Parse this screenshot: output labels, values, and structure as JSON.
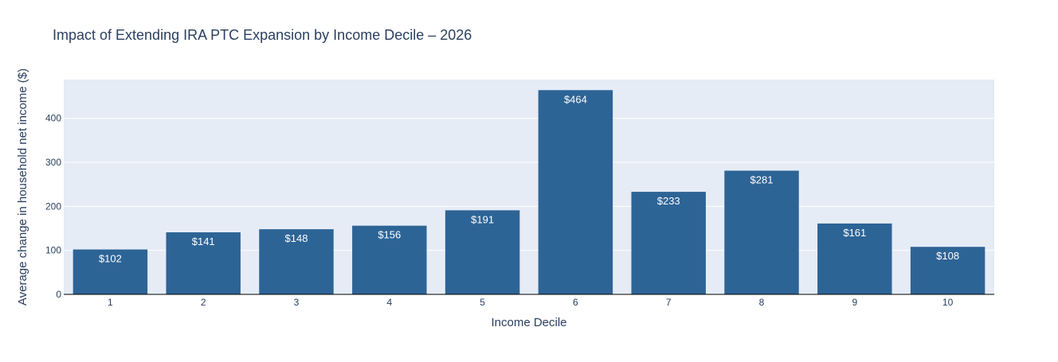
{
  "chart_data": {
    "type": "bar",
    "title": "Impact of Extending IRA PTC Expansion by Income Decile – 2026",
    "xlabel": "Income Decile",
    "ylabel": "Average change in household net income ($)",
    "categories": [
      "1",
      "2",
      "3",
      "4",
      "5",
      "6",
      "7",
      "8",
      "9",
      "10"
    ],
    "values": [
      102,
      141,
      148,
      156,
      191,
      464,
      233,
      281,
      161,
      108
    ],
    "value_labels": [
      "$102",
      "$141",
      "$148",
      "$156",
      "$191",
      "$464",
      "$233",
      "$281",
      "$161",
      "$108"
    ],
    "yticks": [
      0,
      100,
      200,
      300,
      400
    ],
    "ylim": [
      0,
      488
    ],
    "grid": true,
    "colors": {
      "bar": "#2d6496",
      "plot_bg": "#e5ecf6",
      "grid": "#ffffff",
      "text": "#2a3f5f",
      "bar_label": "#ffffff",
      "axis_line": "#000000"
    }
  }
}
